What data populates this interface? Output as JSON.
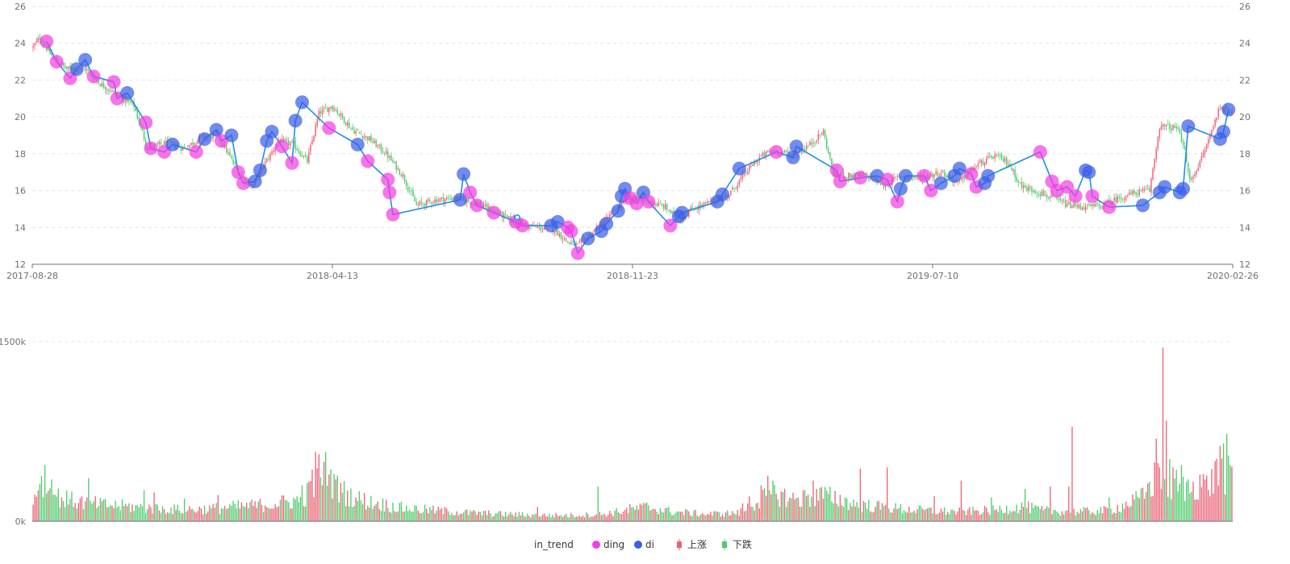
{
  "chart_data": {
    "type": "candlestick",
    "x_start_label": "2017-08-28",
    "x_tick_labels": [
      "2017-08-28",
      "2018-04-13",
      "2018-11-23",
      "2019-07-10",
      "2020-02-26"
    ],
    "price_axis": {
      "min": 12,
      "max": 26,
      "ticks": [
        12,
        14,
        16,
        18,
        20,
        22,
        24,
        26
      ]
    },
    "volume_axis": {
      "min": 0,
      "max": 1500,
      "ticks": [
        0,
        1500
      ],
      "tick_labels": [
        "0k",
        "1500k"
      ]
    },
    "price_anchors": [
      [
        0,
        23.8
      ],
      [
        4,
        24.3
      ],
      [
        12,
        23.2
      ],
      [
        20,
        22.6
      ],
      [
        30,
        22.7
      ],
      [
        40,
        21.8
      ],
      [
        50,
        21.2
      ],
      [
        60,
        20.6
      ],
      [
        68,
        18.3
      ],
      [
        80,
        18.6
      ],
      [
        90,
        18.3
      ],
      [
        100,
        18.9
      ],
      [
        110,
        19.0
      ],
      [
        122,
        17.0
      ],
      [
        130,
        16.2
      ],
      [
        138,
        17.5
      ],
      [
        146,
        18.7
      ],
      [
        155,
        18.5
      ],
      [
        163,
        17.6
      ],
      [
        170,
        20.2
      ],
      [
        178,
        20.6
      ],
      [
        190,
        19.3
      ],
      [
        200,
        18.8
      ],
      [
        210,
        18.0
      ],
      [
        220,
        16.8
      ],
      [
        228,
        15.2
      ],
      [
        240,
        15.5
      ],
      [
        252,
        15.6
      ],
      [
        264,
        15.3
      ],
      [
        276,
        14.8
      ],
      [
        288,
        14.2
      ],
      [
        300,
        14.0
      ],
      [
        310,
        13.9
      ],
      [
        318,
        13.2
      ],
      [
        324,
        13.0
      ],
      [
        336,
        14.0
      ],
      [
        346,
        14.9
      ],
      [
        356,
        15.7
      ],
      [
        366,
        15.4
      ],
      [
        376,
        15.1
      ],
      [
        384,
        14.4
      ],
      [
        392,
        15.0
      ],
      [
        404,
        15.4
      ],
      [
        414,
        15.8
      ],
      [
        424,
        17.0
      ],
      [
        432,
        17.8
      ],
      [
        440,
        18.2
      ],
      [
        452,
        17.9
      ],
      [
        462,
        18.5
      ],
      [
        470,
        19.2
      ],
      [
        476,
        16.9
      ],
      [
        484,
        16.8
      ],
      [
        496,
        16.8
      ],
      [
        506,
        16.3
      ],
      [
        516,
        16.8
      ],
      [
        528,
        16.7
      ],
      [
        540,
        17.0
      ],
      [
        550,
        16.4
      ],
      [
        560,
        17.3
      ],
      [
        572,
        17.9
      ],
      [
        580,
        17.5
      ],
      [
        588,
        16.2
      ],
      [
        596,
        16.0
      ],
      [
        606,
        15.6
      ],
      [
        616,
        15.2
      ],
      [
        626,
        15.1
      ],
      [
        636,
        15.2
      ],
      [
        646,
        15.6
      ],
      [
        656,
        15.9
      ],
      [
        664,
        16.0
      ],
      [
        670,
        19.5
      ],
      [
        680,
        19.4
      ],
      [
        684,
        18.6
      ],
      [
        688,
        16.5
      ],
      [
        694,
        17.5
      ],
      [
        700,
        19.0
      ],
      [
        706,
        20.6
      ],
      [
        710,
        20.3
      ]
    ],
    "volume_anchors": [
      [
        0,
        200
      ],
      [
        6,
        330
      ],
      [
        12,
        220
      ],
      [
        20,
        180
      ],
      [
        30,
        160
      ],
      [
        40,
        140
      ],
      [
        50,
        130
      ],
      [
        60,
        120
      ],
      [
        80,
        100
      ],
      [
        100,
        100
      ],
      [
        120,
        120
      ],
      [
        140,
        140
      ],
      [
        160,
        180
      ],
      [
        168,
        320
      ],
      [
        174,
        420
      ],
      [
        180,
        280
      ],
      [
        190,
        200
      ],
      [
        200,
        160
      ],
      [
        220,
        110
      ],
      [
        240,
        90
      ],
      [
        260,
        70
      ],
      [
        280,
        60
      ],
      [
        300,
        50
      ],
      [
        320,
        50
      ],
      [
        340,
        60
      ],
      [
        355,
        100
      ],
      [
        365,
        120
      ],
      [
        380,
        80
      ],
      [
        400,
        60
      ],
      [
        420,
        70
      ],
      [
        430,
        160
      ],
      [
        440,
        240
      ],
      [
        448,
        200
      ],
      [
        456,
        180
      ],
      [
        470,
        220
      ],
      [
        480,
        180
      ],
      [
        490,
        140
      ],
      [
        510,
        110
      ],
      [
        530,
        90
      ],
      [
        550,
        80
      ],
      [
        570,
        90
      ],
      [
        580,
        110
      ],
      [
        590,
        120
      ],
      [
        600,
        90
      ],
      [
        620,
        80
      ],
      [
        640,
        90
      ],
      [
        650,
        140
      ],
      [
        660,
        200
      ],
      [
        666,
        320
      ],
      [
        670,
        460
      ],
      [
        674,
        300
      ],
      [
        680,
        260
      ],
      [
        690,
        300
      ],
      [
        700,
        320
      ],
      [
        706,
        420
      ],
      [
        710,
        380
      ]
    ],
    "volume_spikes": [
      [
        4,
        310
      ],
      [
        7,
        470
      ],
      [
        11,
        350
      ],
      [
        33,
        360
      ],
      [
        66,
        260
      ],
      [
        72,
        240
      ],
      [
        90,
        190
      ],
      [
        110,
        220
      ],
      [
        160,
        300
      ],
      [
        166,
        430
      ],
      [
        168,
        580
      ],
      [
        170,
        560
      ],
      [
        176,
        390
      ],
      [
        180,
        350
      ],
      [
        236,
        120
      ],
      [
        300,
        120
      ],
      [
        336,
        290
      ],
      [
        368,
        100
      ],
      [
        422,
        150
      ],
      [
        426,
        210
      ],
      [
        433,
        300
      ],
      [
        437,
        380
      ],
      [
        442,
        230
      ],
      [
        451,
        190
      ],
      [
        458,
        260
      ],
      [
        464,
        340
      ],
      [
        468,
        280
      ],
      [
        476,
        150
      ],
      [
        492,
        440
      ],
      [
        508,
        450
      ],
      [
        536,
        210
      ],
      [
        552,
        340
      ],
      [
        570,
        200
      ],
      [
        590,
        270
      ],
      [
        605,
        290
      ],
      [
        616,
        290
      ],
      [
        618,
        790
      ],
      [
        640,
        200
      ],
      [
        660,
        280
      ],
      [
        664,
        330
      ],
      [
        668,
        690
      ],
      [
        672,
        1450
      ],
      [
        674,
        840
      ],
      [
        676,
        520
      ],
      [
        678,
        450
      ],
      [
        680,
        430
      ],
      [
        683,
        470
      ],
      [
        686,
        330
      ],
      [
        690,
        330
      ],
      [
        694,
        390
      ],
      [
        698,
        380
      ],
      [
        704,
        520
      ],
      [
        706,
        630
      ],
      [
        708,
        650
      ],
      [
        710,
        730
      ],
      [
        712,
        470
      ]
    ],
    "trend_points": [
      {
        "i": 8,
        "p": 24.1,
        "t": "ding"
      },
      {
        "i": 14,
        "p": 23.0,
        "t": "ding"
      },
      {
        "i": 22,
        "p": 22.1,
        "t": "ding"
      },
      {
        "i": 26,
        "p": 22.6,
        "t": "di"
      },
      {
        "i": 31,
        "p": 23.1,
        "t": "di"
      },
      {
        "i": 36,
        "p": 22.2,
        "t": "ding"
      },
      {
        "i": 48,
        "p": 21.9,
        "t": "ding"
      },
      {
        "i": 50,
        "p": 21.0,
        "t": "ding"
      },
      {
        "i": 56,
        "p": 21.3,
        "t": "di"
      },
      {
        "i": 67,
        "p": 19.7,
        "t": "ding"
      },
      {
        "i": 70,
        "p": 18.3,
        "t": "ding"
      },
      {
        "i": 78,
        "p": 18.1,
        "t": "ding"
      },
      {
        "i": 83,
        "p": 18.5,
        "t": "di"
      },
      {
        "i": 97,
        "p": 18.1,
        "t": "ding"
      },
      {
        "i": 102,
        "p": 18.8,
        "t": "di"
      },
      {
        "i": 109,
        "p": 19.3,
        "t": "di"
      },
      {
        "i": 112,
        "p": 18.7,
        "t": "ding"
      },
      {
        "i": 118,
        "p": 19.0,
        "t": "di"
      },
      {
        "i": 122,
        "p": 17.0,
        "t": "ding"
      },
      {
        "i": 125,
        "p": 16.4,
        "t": "ding"
      },
      {
        "i": 132,
        "p": 16.5,
        "t": "di"
      },
      {
        "i": 135,
        "p": 17.1,
        "t": "di"
      },
      {
        "i": 139,
        "p": 18.7,
        "t": "di"
      },
      {
        "i": 142,
        "p": 19.2,
        "t": "di"
      },
      {
        "i": 148,
        "p": 18.4,
        "t": "ding"
      },
      {
        "i": 154,
        "p": 17.5,
        "t": "ding"
      },
      {
        "i": 156,
        "p": 19.8,
        "t": "di"
      },
      {
        "i": 160,
        "p": 20.8,
        "t": "di"
      },
      {
        "i": 176,
        "p": 19.4,
        "t": "ding"
      },
      {
        "i": 193,
        "p": 18.5,
        "t": "di"
      },
      {
        "i": 199,
        "p": 17.6,
        "t": "ding"
      },
      {
        "i": 211,
        "p": 16.6,
        "t": "ding"
      },
      {
        "i": 212,
        "p": 15.9,
        "t": "ding"
      },
      {
        "i": 214,
        "p": 14.7,
        "t": "ding"
      },
      {
        "i": 254,
        "p": 15.5,
        "t": "di"
      },
      {
        "i": 256,
        "p": 16.9,
        "t": "di"
      },
      {
        "i": 260,
        "p": 15.9,
        "t": "ding"
      },
      {
        "i": 264,
        "p": 15.2,
        "t": "ding"
      },
      {
        "i": 274,
        "p": 14.8,
        "t": "ding"
      },
      {
        "i": 287,
        "p": 14.3,
        "t": "ding"
      },
      {
        "i": 291,
        "p": 14.1,
        "t": "ding"
      },
      {
        "i": 308,
        "p": 14.1,
        "t": "di"
      },
      {
        "i": 312,
        "p": 14.3,
        "t": "di"
      },
      {
        "i": 318,
        "p": 14.0,
        "t": "ding"
      },
      {
        "i": 320,
        "p": 13.8,
        "t": "ding"
      },
      {
        "i": 324,
        "p": 12.6,
        "t": "ding"
      },
      {
        "i": 330,
        "p": 13.4,
        "t": "di"
      },
      {
        "i": 338,
        "p": 13.8,
        "t": "di"
      },
      {
        "i": 341,
        "p": 14.2,
        "t": "di"
      },
      {
        "i": 348,
        "p": 14.9,
        "t": "di"
      },
      {
        "i": 350,
        "p": 15.7,
        "t": "di"
      },
      {
        "i": 352,
        "p": 16.1,
        "t": "di"
      },
      {
        "i": 355,
        "p": 15.6,
        "t": "ding"
      },
      {
        "i": 359,
        "p": 15.3,
        "t": "ding"
      },
      {
        "i": 363,
        "p": 15.9,
        "t": "di"
      },
      {
        "i": 366,
        "p": 15.4,
        "t": "ding"
      },
      {
        "i": 379,
        "p": 14.1,
        "t": "ding"
      },
      {
        "i": 384,
        "p": 14.6,
        "t": "di"
      },
      {
        "i": 386,
        "p": 14.8,
        "t": "di"
      },
      {
        "i": 407,
        "p": 15.4,
        "t": "di"
      },
      {
        "i": 410,
        "p": 15.8,
        "t": "di"
      },
      {
        "i": 420,
        "p": 17.2,
        "t": "di"
      },
      {
        "i": 442,
        "p": 18.1,
        "t": "ding"
      },
      {
        "i": 452,
        "p": 17.8,
        "t": "di"
      },
      {
        "i": 454,
        "p": 18.4,
        "t": "di"
      },
      {
        "i": 478,
        "p": 17.1,
        "t": "ding"
      },
      {
        "i": 480,
        "p": 16.5,
        "t": "ding"
      },
      {
        "i": 492,
        "p": 16.7,
        "t": "ding"
      },
      {
        "i": 502,
        "p": 16.8,
        "t": "di"
      },
      {
        "i": 508,
        "p": 16.6,
        "t": "ding"
      },
      {
        "i": 514,
        "p": 15.4,
        "t": "ding"
      },
      {
        "i": 516,
        "p": 16.1,
        "t": "di"
      },
      {
        "i": 519,
        "p": 16.8,
        "t": "di"
      },
      {
        "i": 530,
        "p": 16.8,
        "t": "ding"
      },
      {
        "i": 534,
        "p": 16.0,
        "t": "ding"
      },
      {
        "i": 540,
        "p": 16.4,
        "t": "di"
      },
      {
        "i": 548,
        "p": 16.8,
        "t": "di"
      },
      {
        "i": 551,
        "p": 17.2,
        "t": "di"
      },
      {
        "i": 558,
        "p": 16.9,
        "t": "ding"
      },
      {
        "i": 561,
        "p": 16.2,
        "t": "ding"
      },
      {
        "i": 566,
        "p": 16.4,
        "t": "di"
      },
      {
        "i": 568,
        "p": 16.8,
        "t": "di"
      },
      {
        "i": 599,
        "p": 18.1,
        "t": "ding"
      },
      {
        "i": 606,
        "p": 16.5,
        "t": "ding"
      },
      {
        "i": 609,
        "p": 16.0,
        "t": "ding"
      },
      {
        "i": 615,
        "p": 16.2,
        "t": "ding"
      },
      {
        "i": 620,
        "p": 15.7,
        "t": "ding"
      },
      {
        "i": 626,
        "p": 17.1,
        "t": "di"
      },
      {
        "i": 628,
        "p": 17.0,
        "t": "di"
      },
      {
        "i": 630,
        "p": 15.7,
        "t": "ding"
      },
      {
        "i": 640,
        "p": 15.1,
        "t": "ding"
      },
      {
        "i": 660,
        "p": 15.2,
        "t": "di"
      },
      {
        "i": 670,
        "p": 15.9,
        "t": "di"
      },
      {
        "i": 673,
        "p": 16.2,
        "t": "di"
      },
      {
        "i": 682,
        "p": 15.9,
        "t": "di"
      },
      {
        "i": 684,
        "p": 16.1,
        "t": "di"
      },
      {
        "i": 687,
        "p": 19.5,
        "t": "di"
      },
      {
        "i": 706,
        "p": 18.8,
        "t": "di"
      },
      {
        "i": 708,
        "p": 19.2,
        "t": "di"
      },
      {
        "i": 711,
        "p": 20.4,
        "t": "di"
      }
    ],
    "colors": {
      "up": "#ec6275",
      "down": "#4fcb6b",
      "ding": "#f43fe2",
      "di": "#3a5ee8",
      "trend_line": "#1f8ee6"
    },
    "legend": [
      {
        "name": "in_trend",
        "type": "line"
      },
      {
        "name": "ding",
        "type": "point"
      },
      {
        "name": "di",
        "type": "point"
      },
      {
        "name": "上涨",
        "type": "candle-up"
      },
      {
        "name": "下跌",
        "type": "candle-down"
      }
    ]
  }
}
